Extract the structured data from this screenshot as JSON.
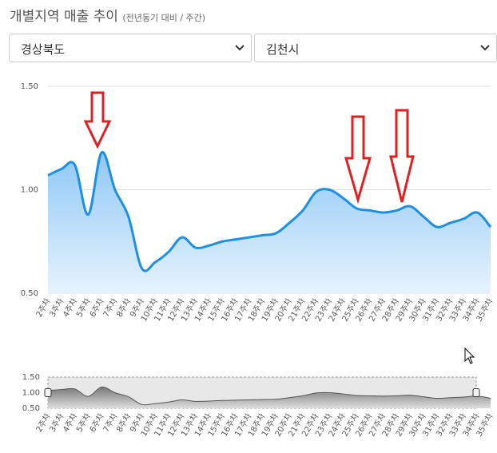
{
  "header": {
    "title": "개별지역 매출 추이",
    "subtitle": "(전년동기 대비 / 주간)"
  },
  "filters": {
    "province": "경상북도",
    "city": "김천시"
  },
  "chart_data": {
    "type": "line",
    "color": "#1e8fe6",
    "categories": [
      "2주차",
      "3주차",
      "4주차",
      "5주차",
      "6주차",
      "7주차",
      "8주차",
      "9주차",
      "10주차",
      "11주차",
      "12주차",
      "13주차",
      "14주차",
      "15주차",
      "16주차",
      "17주차",
      "18주차",
      "19주차",
      "20주차",
      "21주차",
      "22주차",
      "23주차",
      "24주차",
      "25주차",
      "26주차",
      "27주차",
      "28주차",
      "29주차",
      "30주차",
      "31주차",
      "32주차",
      "33주차",
      "34주차",
      "35주차"
    ],
    "values": [
      1.07,
      1.1,
      1.12,
      0.88,
      1.18,
      1.0,
      0.87,
      0.62,
      0.65,
      0.7,
      0.77,
      0.72,
      0.73,
      0.75,
      0.76,
      0.77,
      0.78,
      0.79,
      0.84,
      0.9,
      0.99,
      1.0,
      0.96,
      0.91,
      0.9,
      0.89,
      0.9,
      0.92,
      0.87,
      0.82,
      0.84,
      0.86,
      0.89,
      0.82
    ],
    "ylim": [
      0.5,
      1.5
    ],
    "yticks": [
      {
        "value": 0.5,
        "label": "0.50"
      },
      {
        "value": 1.0,
        "label": "1.00"
      },
      {
        "value": 1.5,
        "label": "1.50"
      }
    ],
    "grid": true
  }
}
